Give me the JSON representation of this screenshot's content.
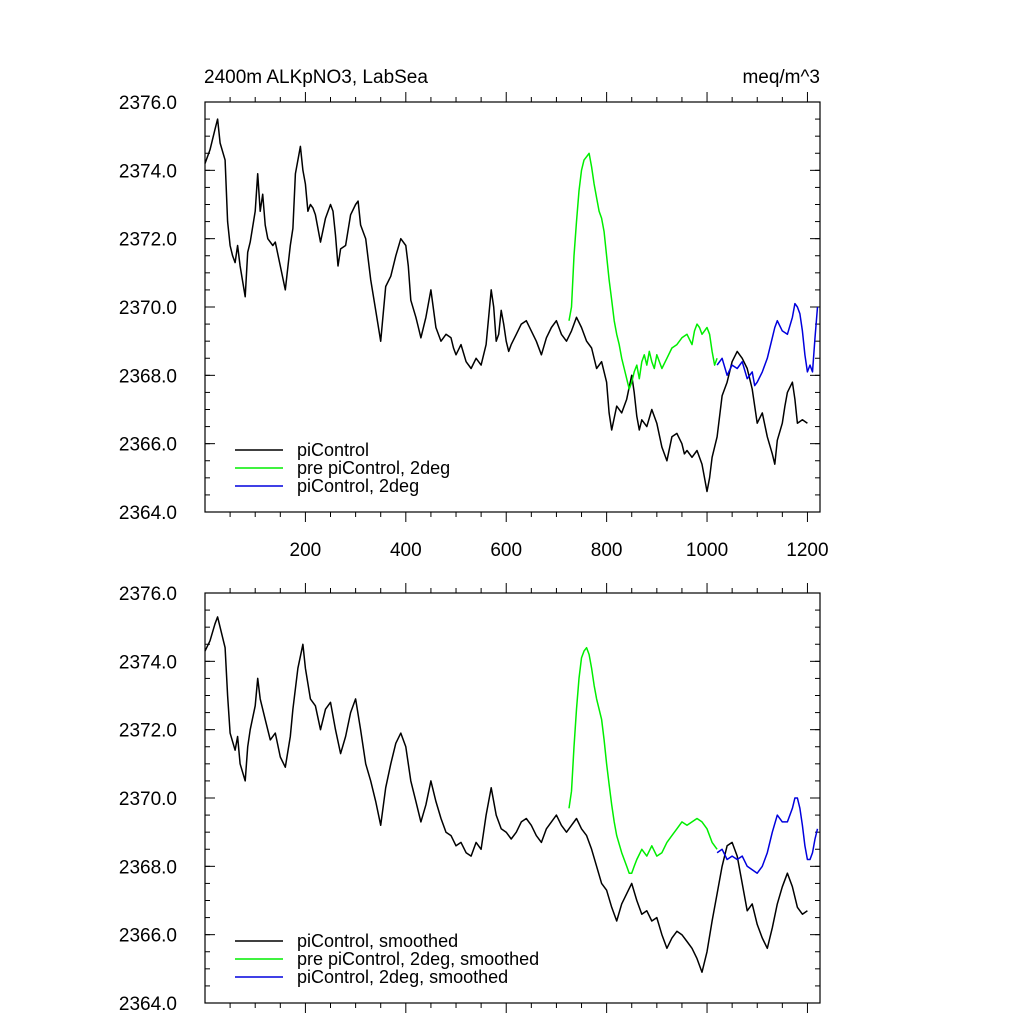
{
  "chart_data": [
    {
      "type": "line",
      "title_left": "2400m ALKpNO3, LabSea",
      "title_right": "meq/m^3",
      "xlim": [
        0,
        1225
      ],
      "ylim": [
        2364.0,
        2376.0
      ],
      "x_ticks": [
        200,
        400,
        600,
        800,
        1000,
        1200
      ],
      "x_tick_labels": [
        "200",
        "400",
        "600",
        "800",
        "1000",
        "1200"
      ],
      "y_ticks": [
        2364.0,
        2366.0,
        2368.0,
        2370.0,
        2372.0,
        2374.0,
        2376.0
      ],
      "y_tick_labels": [
        "2364.0",
        "2366.0",
        "2368.0",
        "2370.0",
        "2372.0",
        "2374.0",
        "2376.0"
      ],
      "legend_position": "bottom-left",
      "series": [
        {
          "name": "piControl",
          "color": "#000000",
          "x": [
            0,
            10,
            20,
            25,
            30,
            40,
            45,
            50,
            55,
            60,
            65,
            70,
            80,
            85,
            90,
            100,
            105,
            110,
            115,
            120,
            125,
            135,
            140,
            150,
            160,
            170,
            175,
            180,
            190,
            195,
            200,
            205,
            210,
            215,
            220,
            230,
            240,
            250,
            255,
            260,
            265,
            270,
            280,
            290,
            300,
            305,
            310,
            320,
            330,
            340,
            350,
            355,
            360,
            370,
            380,
            390,
            400,
            405,
            410,
            420,
            425,
            430,
            440,
            450,
            460,
            470,
            480,
            490,
            495,
            500,
            510,
            520,
            530,
            540,
            550,
            560,
            570,
            575,
            580,
            585,
            590,
            595,
            600,
            605,
            610,
            620,
            630,
            640,
            650,
            660,
            670,
            680,
            690,
            700,
            710,
            720,
            730,
            740,
            750,
            760,
            770,
            780,
            790,
            800,
            805,
            810,
            820,
            830,
            840,
            850,
            855,
            860,
            865,
            870,
            880,
            890,
            900,
            910,
            920,
            930,
            940,
            950,
            955,
            960,
            970,
            980,
            990,
            995,
            1000,
            1005,
            1010,
            1020,
            1030,
            1040,
            1050,
            1060,
            1070,
            1080,
            1090,
            1100,
            1110,
            1120,
            1130,
            1135,
            1140,
            1150,
            1155,
            1160,
            1170,
            1175,
            1180,
            1190,
            1200
          ],
          "y": [
            2374.2,
            2374.6,
            2375.2,
            2375.5,
            2374.8,
            2374.3,
            2372.5,
            2371.8,
            2371.5,
            2371.3,
            2371.8,
            2371.2,
            2370.3,
            2371.6,
            2371.9,
            2372.8,
            2373.9,
            2372.8,
            2373.3,
            2372.4,
            2372.0,
            2371.8,
            2371.9,
            2371.2,
            2370.5,
            2371.8,
            2372.3,
            2373.9,
            2374.7,
            2374.0,
            2373.6,
            2372.8,
            2373.0,
            2372.9,
            2372.7,
            2371.9,
            2372.6,
            2373.0,
            2372.8,
            2372.1,
            2371.2,
            2371.7,
            2371.8,
            2372.7,
            2373.0,
            2373.1,
            2372.4,
            2372.0,
            2370.8,
            2369.9,
            2369.0,
            2369.8,
            2370.6,
            2370.9,
            2371.5,
            2372.0,
            2371.8,
            2371.2,
            2370.2,
            2369.7,
            2369.4,
            2369.1,
            2369.7,
            2370.5,
            2369.4,
            2369.0,
            2369.2,
            2369.1,
            2368.8,
            2368.6,
            2368.9,
            2368.4,
            2368.2,
            2368.5,
            2368.3,
            2368.9,
            2370.5,
            2370.0,
            2369.0,
            2369.2,
            2369.9,
            2369.5,
            2369.0,
            2368.7,
            2368.9,
            2369.2,
            2369.5,
            2369.6,
            2369.3,
            2369.0,
            2368.6,
            2369.1,
            2369.4,
            2369.6,
            2369.2,
            2369.0,
            2369.3,
            2369.7,
            2369.4,
            2369.0,
            2368.8,
            2368.2,
            2368.4,
            2367.8,
            2366.9,
            2366.4,
            2367.1,
            2366.9,
            2367.3,
            2368.0,
            2367.5,
            2366.8,
            2366.4,
            2366.7,
            2366.5,
            2367.0,
            2366.6,
            2365.9,
            2365.5,
            2366.2,
            2366.3,
            2366.0,
            2365.7,
            2365.8,
            2365.6,
            2365.8,
            2365.4,
            2365.0,
            2364.6,
            2365.0,
            2365.6,
            2366.2,
            2367.4,
            2367.8,
            2368.4,
            2368.7,
            2368.5,
            2368.2,
            2367.6,
            2366.6,
            2366.9,
            2366.2,
            2365.7,
            2365.4,
            2366.1,
            2366.6,
            2367.1,
            2367.5,
            2367.8,
            2367.3,
            2366.6,
            2366.7,
            2366.6
          ],
          "legend_label": "piControl"
        },
        {
          "name": "pre piControl, 2deg",
          "color": "#00ee00",
          "x": [
            725,
            730,
            735,
            740,
            745,
            750,
            755,
            760,
            765,
            770,
            775,
            780,
            785,
            790,
            795,
            800,
            805,
            810,
            815,
            820,
            825,
            830,
            835,
            840,
            845,
            850,
            855,
            860,
            865,
            870,
            875,
            880,
            885,
            890,
            895,
            900,
            910,
            920,
            930,
            940,
            950,
            960,
            970,
            975,
            980,
            985,
            990,
            995,
            1000,
            1005,
            1010,
            1015,
            1020
          ],
          "y": [
            2369.6,
            2370.0,
            2371.5,
            2372.5,
            2373.4,
            2374.0,
            2374.3,
            2374.4,
            2374.5,
            2374.1,
            2373.6,
            2373.2,
            2372.8,
            2372.6,
            2372.2,
            2371.5,
            2370.8,
            2370.2,
            2369.6,
            2369.2,
            2368.9,
            2368.5,
            2368.2,
            2367.9,
            2367.6,
            2367.8,
            2368.1,
            2368.3,
            2367.9,
            2368.4,
            2368.6,
            2368.3,
            2368.7,
            2368.4,
            2368.2,
            2368.6,
            2368.2,
            2368.5,
            2368.8,
            2368.9,
            2369.1,
            2369.2,
            2368.9,
            2369.3,
            2369.5,
            2369.4,
            2369.2,
            2369.3,
            2369.4,
            2369.2,
            2368.7,
            2368.3,
            2368.5
          ],
          "legend_label": "pre piControl, 2deg"
        },
        {
          "name": "piControl, 2deg",
          "color": "#0000dd",
          "x": [
            1020,
            1030,
            1040,
            1050,
            1060,
            1070,
            1080,
            1090,
            1095,
            1100,
            1110,
            1120,
            1130,
            1135,
            1140,
            1150,
            1160,
            1170,
            1175,
            1180,
            1185,
            1190,
            1195,
            1200,
            1205,
            1210,
            1215,
            1220
          ],
          "y": [
            2368.3,
            2368.5,
            2368.0,
            2368.3,
            2368.2,
            2368.4,
            2367.9,
            2368.1,
            2367.7,
            2367.8,
            2368.1,
            2368.5,
            2369.1,
            2369.4,
            2369.6,
            2369.3,
            2369.2,
            2369.7,
            2370.1,
            2370.0,
            2369.8,
            2369.3,
            2368.6,
            2368.1,
            2368.3,
            2368.1,
            2369.1,
            2370.0
          ],
          "legend_label": "piControl, 2deg"
        }
      ]
    },
    {
      "type": "line",
      "xlim": [
        0,
        1225
      ],
      "ylim": [
        2364.0,
        2376.0
      ],
      "y_ticks": [
        2364.0,
        2366.0,
        2368.0,
        2370.0,
        2372.0,
        2374.0,
        2376.0
      ],
      "y_tick_labels": [
        "2364.0",
        "2366.0",
        "2368.0",
        "2370.0",
        "2372.0",
        "2374.0",
        "2376.0"
      ],
      "legend_position": "bottom-left",
      "series": [
        {
          "name": "piControl, smoothed",
          "color": "#000000",
          "x": [
            0,
            10,
            20,
            25,
            30,
            40,
            45,
            50,
            60,
            65,
            70,
            80,
            85,
            90,
            100,
            105,
            110,
            120,
            130,
            140,
            150,
            160,
            170,
            175,
            185,
            195,
            200,
            210,
            220,
            230,
            240,
            250,
            260,
            270,
            280,
            290,
            300,
            310,
            320,
            330,
            340,
            350,
            360,
            370,
            380,
            390,
            400,
            410,
            420,
            430,
            440,
            450,
            460,
            470,
            480,
            490,
            500,
            510,
            520,
            530,
            540,
            550,
            560,
            570,
            580,
            590,
            600,
            610,
            620,
            630,
            640,
            650,
            660,
            670,
            680,
            690,
            700,
            710,
            720,
            730,
            740,
            750,
            760,
            770,
            780,
            790,
            800,
            810,
            820,
            830,
            840,
            850,
            860,
            870,
            880,
            890,
            900,
            910,
            920,
            930,
            940,
            950,
            960,
            970,
            980,
            990,
            1000,
            1010,
            1020,
            1030,
            1040,
            1050,
            1060,
            1070,
            1080,
            1090,
            1100,
            1110,
            1120,
            1130,
            1140,
            1150,
            1160,
            1170,
            1180,
            1190,
            1200
          ],
          "y": [
            2374.3,
            2374.6,
            2375.1,
            2375.3,
            2375.0,
            2374.4,
            2373.0,
            2371.9,
            2371.4,
            2371.8,
            2371.0,
            2370.5,
            2371.5,
            2372.0,
            2372.7,
            2373.5,
            2372.9,
            2372.3,
            2371.7,
            2371.9,
            2371.2,
            2370.9,
            2371.8,
            2372.6,
            2373.8,
            2374.5,
            2373.8,
            2372.9,
            2372.7,
            2372.0,
            2372.6,
            2372.8,
            2372.0,
            2371.3,
            2371.8,
            2372.5,
            2372.9,
            2372.0,
            2371.0,
            2370.5,
            2369.9,
            2369.2,
            2370.3,
            2371.0,
            2371.6,
            2371.9,
            2371.5,
            2370.5,
            2369.9,
            2369.3,
            2369.8,
            2370.5,
            2369.9,
            2369.4,
            2369.0,
            2368.9,
            2368.6,
            2368.7,
            2368.4,
            2368.3,
            2368.7,
            2368.5,
            2369.5,
            2370.3,
            2369.5,
            2369.1,
            2369.0,
            2368.8,
            2369.0,
            2369.3,
            2369.4,
            2369.2,
            2368.9,
            2368.7,
            2369.1,
            2369.3,
            2369.5,
            2369.2,
            2369.0,
            2369.2,
            2369.4,
            2369.1,
            2368.9,
            2368.5,
            2368.0,
            2367.5,
            2367.3,
            2366.8,
            2366.4,
            2366.9,
            2367.2,
            2367.5,
            2367.0,
            2366.6,
            2366.7,
            2366.4,
            2366.5,
            2366.0,
            2365.6,
            2365.9,
            2366.1,
            2366.0,
            2365.8,
            2365.6,
            2365.3,
            2364.9,
            2365.5,
            2366.4,
            2367.2,
            2368.0,
            2368.6,
            2368.7,
            2368.3,
            2367.5,
            2366.7,
            2366.9,
            2366.3,
            2365.9,
            2365.6,
            2366.2,
            2366.9,
            2367.4,
            2367.8,
            2367.4,
            2366.8,
            2366.6,
            2366.7
          ],
          "legend_label": "piControl, smoothed"
        },
        {
          "name": "pre piControl, 2deg, smoothed",
          "color": "#00ee00",
          "x": [
            725,
            730,
            735,
            740,
            745,
            750,
            755,
            760,
            765,
            770,
            775,
            780,
            785,
            790,
            795,
            800,
            805,
            810,
            815,
            820,
            830,
            840,
            845,
            850,
            855,
            860,
            870,
            880,
            890,
            900,
            910,
            920,
            930,
            940,
            950,
            960,
            970,
            980,
            990,
            1000,
            1010,
            1020
          ],
          "y": [
            2369.7,
            2370.2,
            2371.5,
            2372.6,
            2373.5,
            2374.1,
            2374.3,
            2374.4,
            2374.2,
            2373.8,
            2373.3,
            2372.9,
            2372.6,
            2372.3,
            2371.7,
            2371.0,
            2370.4,
            2369.8,
            2369.3,
            2368.9,
            2368.4,
            2368.0,
            2367.8,
            2367.8,
            2368.0,
            2368.2,
            2368.5,
            2368.3,
            2368.6,
            2368.3,
            2368.4,
            2368.7,
            2368.9,
            2369.1,
            2369.3,
            2369.2,
            2369.3,
            2369.4,
            2369.3,
            2369.1,
            2368.7,
            2368.5
          ],
          "legend_label": "pre piControl, 2deg, smoothed"
        },
        {
          "name": "piControl, 2deg, smoothed",
          "color": "#0000dd",
          "x": [
            1020,
            1030,
            1040,
            1050,
            1060,
            1070,
            1080,
            1090,
            1100,
            1110,
            1120,
            1130,
            1140,
            1150,
            1160,
            1170,
            1175,
            1180,
            1185,
            1190,
            1195,
            1200,
            1205,
            1210,
            1215,
            1220
          ],
          "y": [
            2368.4,
            2368.5,
            2368.2,
            2368.3,
            2368.2,
            2368.3,
            2368.0,
            2367.9,
            2367.8,
            2368.0,
            2368.4,
            2369.0,
            2369.5,
            2369.3,
            2369.3,
            2369.7,
            2370.0,
            2370.0,
            2369.7,
            2369.2,
            2368.6,
            2368.2,
            2368.2,
            2368.4,
            2368.8,
            2369.1
          ],
          "legend_label": "piControl, 2deg, smoothed"
        }
      ]
    }
  ]
}
